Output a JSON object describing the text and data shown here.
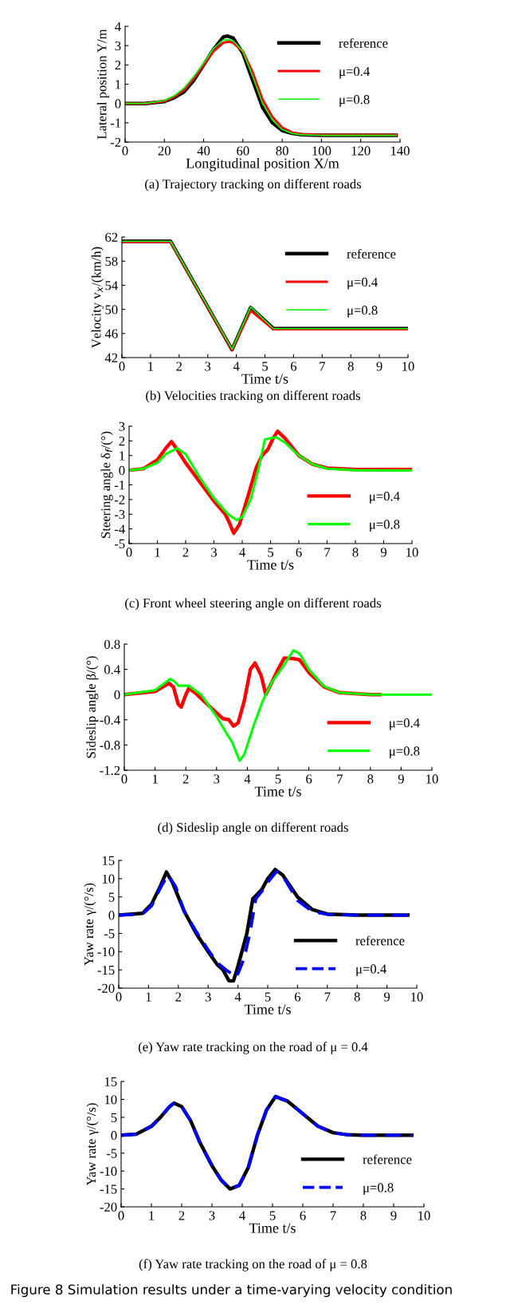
{
  "chart_data": [
    {
      "type": "line",
      "title": "(a) Trajectory tracking on different roads",
      "xlabel": "Longitudinal position X/m",
      "ylabel": "Lateral position Y/m",
      "xlim": [
        0,
        140
      ],
      "ylim": [
        -2,
        4
      ],
      "xticks": [
        0,
        20,
        40,
        60,
        80,
        100,
        120,
        140
      ],
      "yticks": [
        -2,
        -1,
        0,
        1,
        2,
        3,
        4
      ],
      "legend": "top right",
      "grid": false,
      "series": [
        {
          "name": "reference",
          "color": "#000000",
          "x": [
            0,
            10,
            20,
            25,
            30,
            35,
            40,
            45,
            50,
            52,
            55,
            60,
            65,
            70,
            75,
            80,
            85,
            90,
            100,
            120,
            138
          ],
          "values": [
            0,
            0,
            0.1,
            0.3,
            0.6,
            1.2,
            2.0,
            2.8,
            3.45,
            3.5,
            3.4,
            2.6,
            1.2,
            -0.2,
            -1.0,
            -1.4,
            -1.55,
            -1.62,
            -1.65,
            -1.65,
            -1.65
          ]
        },
        {
          "name": "μ=0.4",
          "color": "#ff0000",
          "x": [
            0,
            10,
            20,
            25,
            30,
            35,
            40,
            45,
            50,
            53,
            55,
            60,
            65,
            70,
            75,
            80,
            85,
            90,
            100,
            120,
            138
          ],
          "values": [
            0,
            0,
            0.12,
            0.35,
            0.7,
            1.3,
            2.0,
            2.7,
            3.15,
            3.2,
            3.15,
            2.7,
            1.6,
            0.2,
            -0.7,
            -1.25,
            -1.5,
            -1.6,
            -1.63,
            -1.63,
            -1.63
          ]
        },
        {
          "name": "μ=0.8",
          "color": "#00ff00",
          "x": [
            0,
            10,
            20,
            25,
            30,
            35,
            40,
            45,
            50,
            53,
            55,
            60,
            65,
            70,
            75,
            80,
            85,
            90,
            100,
            120,
            138
          ],
          "values": [
            0,
            0,
            0.15,
            0.4,
            0.8,
            1.4,
            2.1,
            2.85,
            3.3,
            3.3,
            3.25,
            2.7,
            1.4,
            0,
            -0.85,
            -1.35,
            -1.55,
            -1.62,
            -1.65,
            -1.65,
            -1.65
          ]
        }
      ]
    },
    {
      "type": "line",
      "title": "(b) Velocities tracking on different roads",
      "xlabel": "Time t/s",
      "ylabel": "Velocity v$_{x}$/(km/h)",
      "xlim": [
        0,
        10
      ],
      "ylim": [
        42,
        62
      ],
      "xticks": [
        0,
        1,
        2,
        3,
        4,
        5,
        6,
        7,
        8,
        9,
        10
      ],
      "yticks": [
        42,
        46,
        50,
        54,
        58,
        62
      ],
      "legend": "top right",
      "grid": false,
      "series": [
        {
          "name": "reference",
          "color": "#000000",
          "x": [
            0,
            1.7,
            3.85,
            4.5,
            5.3,
            10
          ],
          "values": [
            61.3,
            61.3,
            43.3,
            50.3,
            46.8,
            46.8
          ]
        },
        {
          "name": "μ=0.4",
          "color": "#ff0000",
          "x": [
            0,
            1.7,
            3.85,
            4.5,
            5.3,
            10
          ],
          "values": [
            61.2,
            61.2,
            43.3,
            49.8,
            46.7,
            46.7
          ]
        },
        {
          "name": "μ=0.8",
          "color": "#00ff00",
          "x": [
            0,
            1.7,
            3.85,
            4.5,
            5.3,
            10
          ],
          "values": [
            61.3,
            61.3,
            43.4,
            50.4,
            46.8,
            46.8
          ]
        }
      ]
    },
    {
      "type": "line",
      "title": "(c) Front wheel steering angle on different roads",
      "xlabel": "Time t/s",
      "ylabel": "Steering angle δ$_{f}$/(°)",
      "xlim": [
        0,
        10
      ],
      "ylim": [
        -5,
        3
      ],
      "xticks": [
        0,
        1,
        2,
        3,
        4,
        5,
        6,
        7,
        8,
        9,
        10
      ],
      "yticks": [
        -5,
        -4,
        -3,
        -2,
        -1,
        0,
        1,
        2,
        3
      ],
      "legend": "bottom right",
      "grid": false,
      "series": [
        {
          "name": "μ=0.4",
          "color": "#ff0000",
          "x": [
            0,
            0.5,
            1,
            1.3,
            1.5,
            1.7,
            2,
            2.5,
            3,
            3.4,
            3.55,
            3.7,
            3.9,
            4.2,
            4.5,
            4.7,
            4.9,
            5.1,
            5.25,
            5.5,
            6,
            6.5,
            7,
            8,
            10
          ],
          "values": [
            0,
            0.1,
            0.7,
            1.5,
            1.95,
            1.4,
            0.5,
            -0.8,
            -2.1,
            -3.0,
            -3.6,
            -4.3,
            -3.7,
            -1.8,
            0.2,
            1.0,
            1.4,
            2.2,
            2.65,
            2.2,
            1.0,
            0.4,
            0.15,
            0.05,
            0.05
          ]
        },
        {
          "name": "μ=0.8",
          "color": "#00ff00",
          "x": [
            0,
            0.5,
            1,
            1.3,
            1.7,
            2,
            2.5,
            3,
            3.5,
            3.8,
            4.0,
            4.3,
            4.6,
            4.8,
            5.2,
            5.5,
            6,
            6.5,
            7,
            8,
            10
          ],
          "values": [
            0,
            0.1,
            0.5,
            1.1,
            1.5,
            1.1,
            -0.5,
            -1.9,
            -3.0,
            -3.4,
            -3.2,
            -2.0,
            0.3,
            2.1,
            2.25,
            1.9,
            1.0,
            0.4,
            0.1,
            0,
            -0.02
          ]
        }
      ]
    },
    {
      "type": "line",
      "title": "(d) Sideslip angle on different roads",
      "xlabel": "Time t/s",
      "ylabel": "Sideslip angle β/(°)",
      "xlim": [
        0,
        10
      ],
      "ylim": [
        -1.2,
        0.8
      ],
      "xticks": [
        0,
        1,
        2,
        3,
        4,
        5,
        6,
        7,
        8,
        9,
        10
      ],
      "yticks": [
        {
          "value": -1.2,
          "label": "-1.2"
        },
        {
          "value": -0.8,
          "label": "-0.8"
        },
        {
          "value": -0.4,
          "label": "-0.4"
        },
        0,
        0.4,
        0.8
      ],
      "legend": "bottom right",
      "grid": false,
      "series": [
        {
          "name": "μ=0.4",
          "color": "#ff0000",
          "x": [
            0,
            1,
            1.45,
            1.6,
            1.75,
            1.85,
            2,
            2.1,
            2.3,
            2.8,
            3.2,
            3.4,
            3.55,
            3.7,
            3.9,
            4.1,
            4.25,
            4.45,
            4.6,
            4.8,
            5.0,
            5.2,
            5.5,
            5.7,
            6,
            6.5,
            7,
            8,
            8.3
          ],
          "values": [
            0,
            0.05,
            0.18,
            0.12,
            -0.15,
            -0.2,
            0,
            0.1,
            0.03,
            -0.2,
            -0.38,
            -0.4,
            -0.5,
            -0.45,
            -0.1,
            0.4,
            0.5,
            0.3,
            0,
            0.2,
            0.4,
            0.58,
            0.57,
            0.55,
            0.35,
            0.12,
            0.03,
            0,
            0
          ]
        },
        {
          "name": "μ=0.8",
          "color": "#00ff00",
          "x": [
            0,
            1,
            1.5,
            1.65,
            1.75,
            2.1,
            2.5,
            3,
            3.3,
            3.5,
            3.75,
            3.9,
            4.2,
            4.5,
            4.8,
            5.1,
            5.3,
            5.5,
            5.7,
            6,
            6.5,
            7,
            8,
            10
          ],
          "values": [
            0,
            0.07,
            0.25,
            0.2,
            0.14,
            0.14,
            0,
            -0.35,
            -0.6,
            -0.75,
            -1.05,
            -0.95,
            -0.5,
            -0.1,
            0.2,
            0.4,
            0.55,
            0.7,
            0.65,
            0.4,
            0.13,
            0.03,
            0,
            0
          ]
        }
      ]
    },
    {
      "type": "line",
      "title": "(e) Yaw rate tracking on the road of μ = 0.4",
      "xlabel": "Time t/s",
      "ylabel": "Yaw rate γ/(°/s)",
      "xlim": [
        0,
        10
      ],
      "ylim": [
        -20,
        15
      ],
      "xticks": [
        0,
        1,
        2,
        3,
        4,
        5,
        6,
        7,
        8,
        9,
        10
      ],
      "yticks": [
        -20,
        -15,
        -10,
        -5,
        0,
        5,
        10,
        15
      ],
      "legend": "bottom right",
      "grid": false,
      "series": [
        {
          "name": "reference",
          "color": "#000000",
          "line_style": "solid",
          "x": [
            0,
            0.8,
            1.1,
            1.4,
            1.6,
            1.8,
            2.2,
            2.6,
            3.0,
            3.3,
            3.5,
            3.7,
            3.85,
            4.0,
            4.3,
            4.5,
            4.8,
            5.0,
            5.25,
            5.5,
            6,
            6.5,
            7,
            8,
            9.7
          ],
          "values": [
            0,
            0.5,
            3,
            8,
            11.8,
            9,
            1,
            -5,
            -10,
            -13.5,
            -15,
            -18,
            -18,
            -14,
            -5,
            4.5,
            7,
            10,
            12.5,
            11,
            5,
            1.5,
            0.3,
            0,
            0
          ]
        },
        {
          "name": "μ=0.4",
          "color": "#0000ff",
          "line_style": "dashed",
          "x": [
            0,
            0.8,
            1.1,
            1.4,
            1.65,
            1.9,
            2.2,
            2.6,
            3.0,
            3.3,
            3.6,
            3.95,
            4.2,
            4.4,
            4.6,
            4.8,
            5.0,
            5.3,
            5.6,
            6,
            6.5,
            7,
            8,
            9.7
          ],
          "values": [
            0,
            0.3,
            2.5,
            7.5,
            11,
            8,
            1,
            -4.5,
            -9.5,
            -13,
            -15,
            -17,
            -12,
            -5,
            4.5,
            6.5,
            9,
            12,
            9.5,
            4,
            1,
            0.2,
            0,
            0
          ]
        }
      ]
    },
    {
      "type": "line",
      "title": "(f) Yaw rate tracking on the road of μ = 0.8",
      "xlabel": "Time t/s",
      "ylabel": "Yaw rate γ/(°/s)",
      "xlim": [
        0,
        10
      ],
      "ylim": [
        -20,
        15
      ],
      "xticks": [
        0,
        1,
        2,
        3,
        4,
        5,
        6,
        7,
        8,
        9,
        10
      ],
      "yticks": [
        -20,
        -15,
        -10,
        -5,
        0,
        5,
        10,
        15
      ],
      "legend": "bottom right",
      "grid": false,
      "annotations": [
        "Figure 8 Simulation results under a time-varying velocity condition"
      ],
      "series": [
        {
          "name": "reference",
          "color": "#000000",
          "line_style": "solid",
          "x": [
            0,
            0.5,
            1,
            1.3,
            1.6,
            1.75,
            2,
            2.3,
            2.6,
            3,
            3.3,
            3.6,
            3.9,
            4.2,
            4.5,
            4.8,
            5.1,
            5.5,
            6,
            6.5,
            7,
            7.5,
            8,
            9.6
          ],
          "values": [
            0,
            0.3,
            2.5,
            5,
            8,
            9,
            8,
            4,
            -2,
            -8.5,
            -12.5,
            -15,
            -14,
            -9,
            0,
            7,
            10.8,
            9.5,
            6,
            2.5,
            0.7,
            0.1,
            0,
            0
          ]
        },
        {
          "name": "μ=0.8",
          "color": "#0000ff",
          "line_style": "dashed",
          "x": [
            0,
            0.5,
            1,
            1.3,
            1.6,
            1.75,
            2,
            2.3,
            2.6,
            3,
            3.3,
            3.6,
            3.9,
            4.2,
            4.5,
            4.8,
            5.1,
            5.5,
            6,
            6.5,
            7,
            7.5,
            8,
            9.6
          ],
          "values": [
            0,
            0.3,
            2.4,
            5,
            8,
            9,
            8,
            4,
            -2,
            -8.4,
            -12.4,
            -15,
            -14,
            -9,
            0,
            7,
            10.8,
            9.5,
            6,
            2.5,
            0.7,
            0.1,
            0,
            0
          ]
        }
      ]
    }
  ]
}
